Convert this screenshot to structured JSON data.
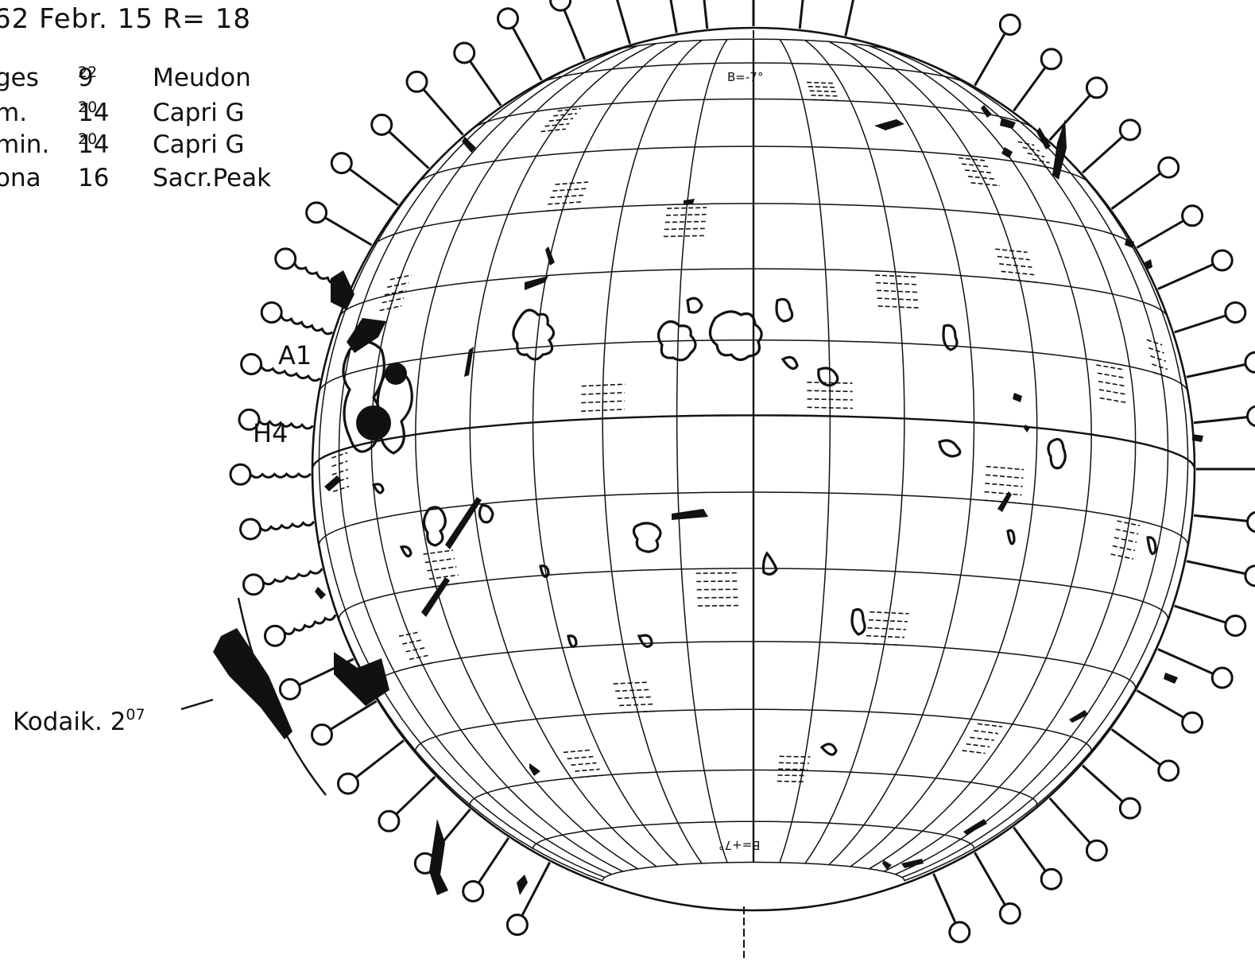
{
  "header": {
    "date_line": "62  Febr. 15  R= 18"
  },
  "observations": [
    {
      "label": "ges",
      "time": "9",
      "time_sup": "22",
      "site": "Meudon"
    },
    {
      "label": "m.",
      "time": "14",
      "time_sup": "20",
      "site": "Capri G"
    },
    {
      "label": "min.",
      "time": "14",
      "time_sup": "20",
      "site": "Capri G"
    },
    {
      "label": "ona",
      "time": "16",
      "time_sup": "",
      "site": "Sacr.Peak"
    }
  ],
  "labels": {
    "a1": "A1",
    "h4": "H4",
    "kodaik": "Kodaik. 2",
    "kodaik_sup": "07"
  },
  "heliographic": {
    "b_top": "B=-7°",
    "b_bottom": "B=+7°"
  },
  "colors": {
    "ink": "#111111",
    "paper": "#ffffff"
  },
  "icons": {
    "prominence_marker": "lollipop-marker-icon",
    "sunspot": "sunspot-dot-icon"
  }
}
